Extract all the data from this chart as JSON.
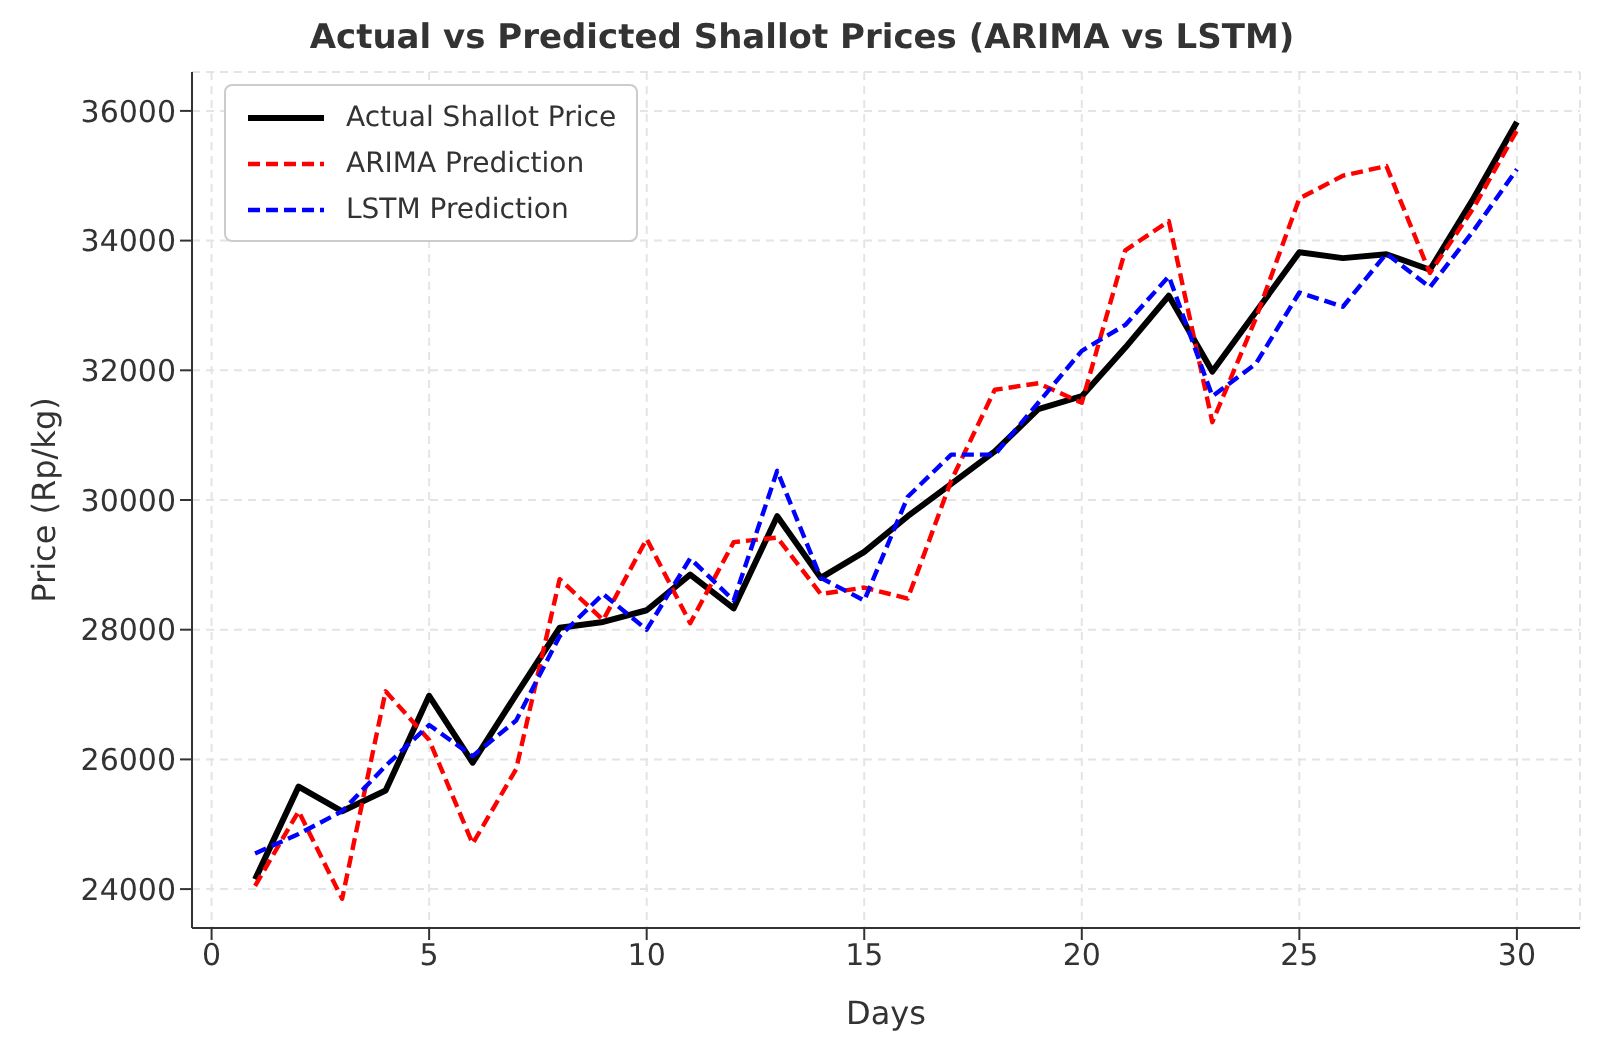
{
  "chart_data": {
    "type": "line",
    "title": "Actual vs Predicted Shallot Prices (ARIMA vs LSTM)",
    "xlabel": "Days",
    "ylabel": "Price (Rp/kg)",
    "x": [
      1,
      2,
      3,
      4,
      5,
      6,
      7,
      8,
      9,
      10,
      11,
      12,
      13,
      14,
      15,
      16,
      17,
      18,
      19,
      20,
      21,
      22,
      23,
      24,
      25,
      26,
      27,
      28,
      29,
      30
    ],
    "series": [
      {
        "name": "Actual Shallot Price",
        "color": "#000000",
        "line_style": "solid",
        "values": [
          24150,
          25580,
          25200,
          25520,
          26980,
          25950,
          27000,
          28030,
          28120,
          28300,
          28850,
          28330,
          29750,
          28800,
          29200,
          29750,
          30250,
          30750,
          31400,
          31600,
          32350,
          33150,
          31980,
          32900,
          33820,
          33730,
          33790,
          33550,
          34650,
          35830
        ]
      },
      {
        "name": "ARIMA Prediction",
        "color": "#ff0000",
        "line_style": "dashed",
        "values": [
          24050,
          25200,
          23850,
          27050,
          26300,
          24700,
          25850,
          28780,
          28150,
          29400,
          28100,
          29350,
          29420,
          28550,
          28650,
          28480,
          30300,
          31700,
          31800,
          31500,
          33850,
          34300,
          31200,
          32800,
          34650,
          35000,
          35150,
          33500,
          34500,
          35700
        ]
      },
      {
        "name": "LSTM Prediction",
        "color": "#0000ff",
        "line_style": "dashed",
        "values": [
          24550,
          24850,
          25200,
          25900,
          26530,
          26050,
          26600,
          27900,
          28550,
          28000,
          29100,
          28450,
          30450,
          28800,
          28450,
          30050,
          30700,
          30700,
          31500,
          32300,
          32700,
          33450,
          31600,
          32100,
          33200,
          32980,
          33800,
          33280,
          34150,
          35100
        ]
      }
    ],
    "xlim": [
      -0.45,
      31.45
    ],
    "xticks": [
      0,
      5,
      10,
      15,
      20,
      25,
      30
    ],
    "ylim": [
      23400,
      36600
    ],
    "yticks": [
      24000,
      26000,
      28000,
      30000,
      32000,
      34000,
      36000
    ],
    "grid": true,
    "legend": "top left",
    "marker": "none"
  }
}
